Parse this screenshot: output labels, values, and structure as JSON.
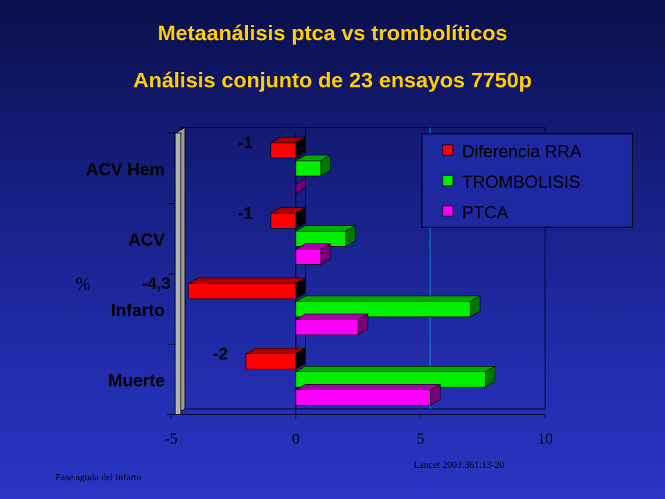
{
  "title": "Metaanálisis ptca vs trombolíticos",
  "subtitle": "Análisis conjunto de 23 ensayos 7750p",
  "ylabel": "%",
  "source": "Lancet 2003:361:13-20",
  "footer": "Fase aguda del infarto",
  "colors": {
    "diferencia": "#ff0000",
    "trombolisis": "#00ee00",
    "ptca": "#ff00ff",
    "title": "#ffcc00"
  },
  "chart_data": {
    "type": "bar",
    "orientation": "horizontal",
    "categories": [
      "ACV Hem",
      "ACV",
      "Infarto",
      "Muerte"
    ],
    "series": [
      {
        "name": "Diferencia RRA",
        "values": [
          -1,
          -1,
          -4.3,
          -2
        ],
        "data_labels": [
          "-1",
          "-1",
          "-4,3",
          "-2"
        ]
      },
      {
        "name": "TROMBOLISIS",
        "values": [
          1,
          2,
          7,
          7.6
        ]
      },
      {
        "name": "PTCA",
        "values": [
          0,
          1,
          2.5,
          5.4
        ]
      }
    ],
    "xlim": [
      -5,
      10
    ],
    "xticks": [
      "-5",
      "0",
      "5",
      "10"
    ],
    "ylabel": "%",
    "legend_position": "top-right",
    "grid": false
  }
}
